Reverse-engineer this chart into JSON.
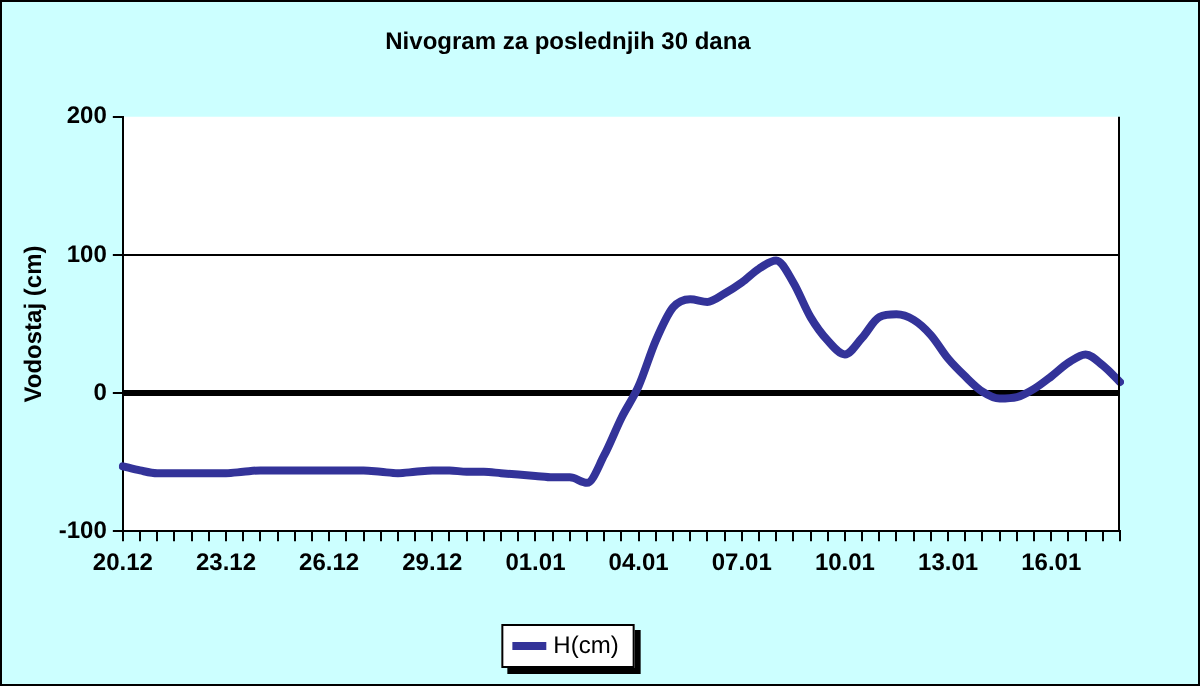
{
  "chart_data": {
    "type": "line",
    "title": "Nivogram za poslednjih 30 dana",
    "ylabel": "Vodostaj (cm)",
    "categories": [
      "20.12",
      null,
      null,
      null,
      null,
      null,
      "23.12",
      null,
      null,
      null,
      null,
      null,
      "26.12",
      null,
      null,
      null,
      null,
      null,
      "29.12",
      null,
      null,
      null,
      null,
      null,
      "01.01",
      null,
      null,
      null,
      null,
      null,
      "04.01",
      null,
      null,
      null,
      null,
      null,
      "07.01",
      null,
      null,
      null,
      null,
      null,
      "10.01",
      null,
      null,
      null,
      null,
      null,
      "13.01",
      null,
      null,
      null,
      null,
      null,
      "16.01",
      null,
      null,
      null,
      null
    ],
    "series": [
      {
        "name": "H(cm)",
        "color": "#333399",
        "values": [
          -53,
          -56,
          -58,
          -58,
          -58,
          -58,
          -58,
          -57,
          -56,
          -56,
          -56,
          -56,
          -56,
          -56,
          -56,
          -57,
          -58,
          -57,
          -56,
          -56,
          -57,
          -57,
          -58,
          -59,
          -60,
          -61,
          -61,
          -65,
          -45,
          -18,
          5,
          38,
          62,
          68,
          66,
          72,
          80,
          90,
          96,
          80,
          55,
          38,
          28,
          40,
          55,
          57,
          53,
          42,
          25,
          12,
          1,
          -4,
          -3,
          3,
          12,
          22,
          28,
          20,
          8
        ]
      }
    ],
    "ylim": [
      -100,
      200
    ],
    "yticks": [
      -100,
      0,
      100,
      200
    ],
    "legend": "bottom",
    "marker": "none",
    "line_style": "solid",
    "ref_lines": [
      {
        "axis": "y",
        "value": 100,
        "color": "#000000"
      },
      {
        "axis": "y",
        "value": 0,
        "color": "#000000"
      }
    ]
  }
}
